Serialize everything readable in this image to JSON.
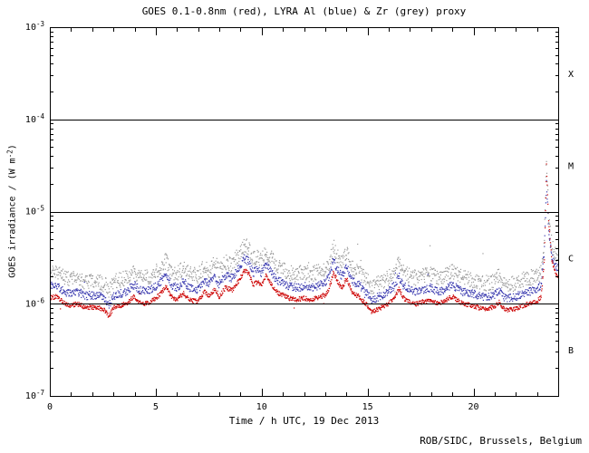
{
  "footer": {
    "credit": "ROB/SIDC, Brussels, Belgium"
  },
  "chart_data": {
    "type": "scatter",
    "title": "GOES 0.1-0.8nm (red), LYRA Al (blue) & Zr (grey) proxy",
    "xlabel": "Time / h UTC, 19 Dec 2013",
    "ylabel": "GOES irradiance / (W m^-2)",
    "ylabel_parts": {
      "main": "GOES irradiance / (W m",
      "exp": "-2",
      "close": ")"
    },
    "x_range": [
      0,
      24
    ],
    "x_major_ticks": [
      0,
      5,
      10,
      15,
      20
    ],
    "x_minor_step": 1,
    "y_scale": "log",
    "y_range": [
      1e-07,
      0.001
    ],
    "grid": "off",
    "legend": "in title",
    "y_ticks": [
      {
        "value": 0.001,
        "base": "10",
        "exp": "-3"
      },
      {
        "value": 0.0001,
        "base": "10",
        "exp": "-4"
      },
      {
        "value": 1e-05,
        "base": "10",
        "exp": "-5"
      },
      {
        "value": 1e-06,
        "base": "10",
        "exp": "-6"
      },
      {
        "value": 1e-07,
        "base": "10",
        "exp": "-7"
      }
    ],
    "flare_class_lines": [
      0.0001,
      1e-05,
      1e-06
    ],
    "flare_class_labels": [
      {
        "label": "X",
        "value": 0.000316
      },
      {
        "label": "M",
        "value": 3.16e-05
      },
      {
        "label": "C",
        "value": 3.16e-06
      },
      {
        "label": "B",
        "value": 3.16e-07
      }
    ],
    "unit_scale": 1e-06,
    "t": [
      0,
      0.3,
      0.7,
      1.0,
      1.3,
      1.7,
      2.0,
      2.3,
      2.6,
      2.8,
      3.0,
      3.3,
      3.6,
      4.0,
      4.2,
      4.5,
      4.8,
      5.0,
      5.2,
      5.5,
      5.7,
      6.0,
      6.3,
      6.6,
      7.0,
      7.3,
      7.5,
      7.8,
      8.0,
      8.3,
      8.6,
      9.0,
      9.2,
      9.4,
      9.6,
      9.8,
      10.0,
      10.2,
      10.4,
      10.6,
      10.8,
      11.0,
      11.3,
      11.6,
      12.0,
      12.3,
      12.6,
      13.0,
      13.2,
      13.4,
      13.6,
      13.8,
      14.0,
      14.3,
      14.6,
      15.0,
      15.2,
      15.4,
      15.6,
      16.0,
      16.3,
      16.5,
      16.7,
      17.0,
      17.3,
      17.6,
      18.0,
      18.3,
      18.6,
      19.0,
      19.2,
      19.5,
      20.0,
      20.3,
      20.6,
      21.0,
      21.2,
      21.5,
      22.0,
      22.3,
      22.6,
      23.0,
      23.2,
      23.35,
      23.45,
      23.55,
      23.7,
      23.85,
      24.0
    ],
    "series": [
      {
        "key": "goes-red",
        "name": "GOES 0.1-0.8nm",
        "color": "#cc0000",
        "jitter": 0.05,
        "values": [
          1.15,
          1.2,
          1.0,
          0.95,
          1.0,
          0.9,
          0.92,
          0.9,
          0.85,
          0.72,
          0.9,
          0.95,
          1.0,
          1.2,
          1.05,
          1.0,
          1.05,
          1.15,
          1.25,
          1.55,
          1.2,
          1.1,
          1.3,
          1.1,
          1.05,
          1.35,
          1.2,
          1.45,
          1.2,
          1.5,
          1.4,
          1.9,
          2.3,
          2.1,
          1.6,
          1.75,
          1.6,
          2.0,
          1.7,
          1.45,
          1.3,
          1.25,
          1.15,
          1.1,
          1.15,
          1.1,
          1.15,
          1.25,
          1.5,
          2.2,
          1.7,
          1.45,
          1.9,
          1.3,
          1.2,
          0.95,
          0.8,
          0.85,
          0.9,
          1.0,
          1.2,
          1.45,
          1.15,
          1.05,
          1.0,
          1.05,
          1.1,
          1.0,
          1.05,
          1.2,
          1.1,
          1.0,
          0.95,
          0.9,
          0.88,
          0.92,
          1.05,
          0.85,
          0.88,
          0.95,
          1.0,
          1.05,
          1.2,
          3.0,
          32.0,
          8.0,
          3.0,
          2.2,
          2.0
        ]
      },
      {
        "key": "lyra-al-blue",
        "name": "LYRA Al proxy",
        "color": "#3535ad",
        "jitter": 0.09,
        "values": [
          1.55,
          1.62,
          1.35,
          1.28,
          1.35,
          1.22,
          1.24,
          1.22,
          1.15,
          0.97,
          1.22,
          1.28,
          1.35,
          1.62,
          1.42,
          1.35,
          1.42,
          1.55,
          1.69,
          2.09,
          1.62,
          1.49,
          1.76,
          1.49,
          1.42,
          1.82,
          1.62,
          1.96,
          1.62,
          2.03,
          1.89,
          2.57,
          3.11,
          2.84,
          2.16,
          2.36,
          2.16,
          2.7,
          2.3,
          1.96,
          1.76,
          1.69,
          1.55,
          1.49,
          1.55,
          1.49,
          1.55,
          1.69,
          2.03,
          2.97,
          2.3,
          1.96,
          2.57,
          1.76,
          1.62,
          1.28,
          1.08,
          1.15,
          1.22,
          1.35,
          1.62,
          1.96,
          1.55,
          1.42,
          1.35,
          1.42,
          1.49,
          1.35,
          1.42,
          1.62,
          1.49,
          1.35,
          1.28,
          1.22,
          1.19,
          1.24,
          1.42,
          1.15,
          1.19,
          1.28,
          1.35,
          1.42,
          1.62,
          3.8,
          22.0,
          6.5,
          3.2,
          2.6,
          2.4
        ]
      },
      {
        "key": "lyra-zr-grey",
        "name": "LYRA Zr proxy",
        "color": "#999999",
        "jitter": 0.17,
        "values": [
          2.19,
          2.28,
          1.9,
          1.81,
          1.9,
          1.71,
          1.75,
          1.71,
          1.62,
          1.37,
          1.71,
          1.81,
          1.9,
          2.28,
          2.0,
          1.9,
          2.0,
          2.19,
          2.38,
          2.95,
          2.28,
          2.09,
          2.47,
          2.09,
          2.0,
          2.57,
          2.28,
          2.76,
          2.28,
          2.85,
          2.66,
          3.61,
          4.37,
          3.99,
          3.04,
          3.33,
          3.04,
          3.8,
          3.23,
          2.76,
          2.47,
          2.38,
          2.19,
          2.09,
          2.19,
          2.09,
          2.19,
          2.38,
          2.85,
          4.18,
          3.23,
          2.76,
          3.61,
          2.47,
          2.28,
          1.81,
          1.52,
          1.62,
          1.71,
          1.9,
          2.28,
          2.76,
          2.19,
          2.0,
          1.9,
          2.0,
          2.09,
          1.9,
          2.0,
          2.28,
          2.09,
          1.9,
          1.81,
          1.71,
          1.67,
          1.75,
          2.0,
          1.62,
          1.67,
          1.81,
          1.9,
          2.0,
          2.28,
          5.0,
          40.0,
          9.0,
          4.2,
          3.4,
          3.1
        ]
      }
    ]
  }
}
